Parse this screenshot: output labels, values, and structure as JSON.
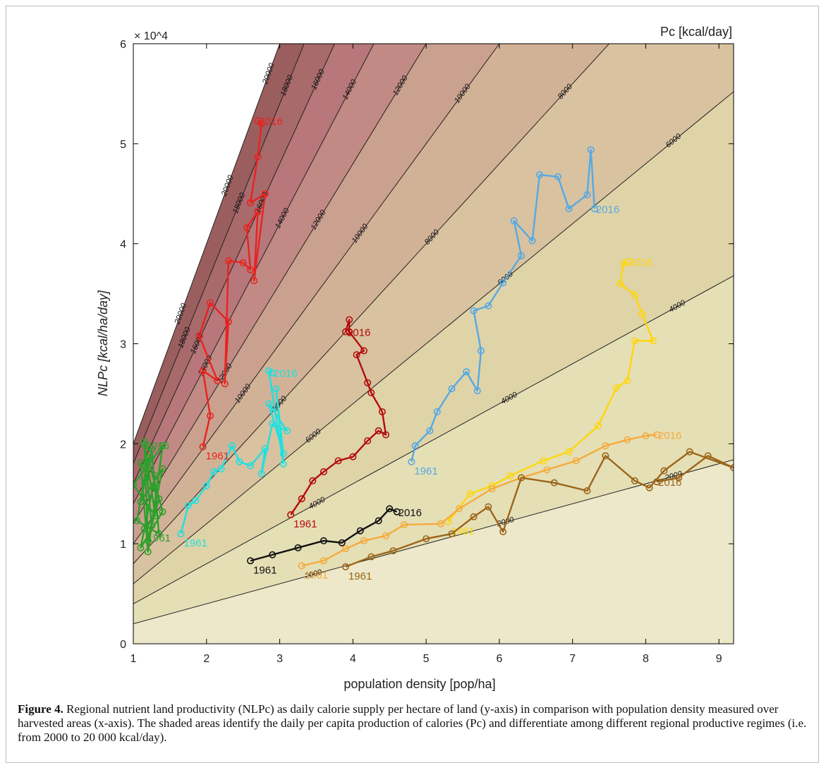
{
  "chart_data": {
    "type": "line",
    "title": "",
    "xlabel": "population density [pop/ha]",
    "ylabel": "NLPc [kcal/ha/day]",
    "y_exponent_label": "× 10^4",
    "colorbar_title": "Pc [kcal/day]",
    "xlim": [
      1,
      9.2
    ],
    "ylim": [
      0,
      60000
    ],
    "x_ticks": [
      1,
      2,
      3,
      4,
      5,
      6,
      7,
      8,
      9
    ],
    "y_ticks": [
      0,
      10000,
      20000,
      30000,
      40000,
      50000,
      60000
    ],
    "y_tick_labels": [
      "0",
      "1",
      "2",
      "3",
      "4",
      "5",
      "6"
    ],
    "grid": false,
    "shaded_regions_kcal_per_day": [
      0,
      2000,
      4000,
      6000,
      8000,
      10000,
      12000,
      14000,
      16000,
      18000,
      20000
    ],
    "contour_levels_kcal_per_day": [
      2000,
      4000,
      6000,
      8000,
      10000,
      12000,
      14000,
      16000,
      18000,
      20000
    ],
    "region_colors": [
      "#ece8c9",
      "#e5dfb6",
      "#dfd3a8",
      "#d8c2a0",
      "#d2b296",
      "#caa08f",
      "#c28a84",
      "#b8777a",
      "#a96a6c",
      "#9a5e5e",
      "#7f4d4d"
    ],
    "series": [
      {
        "color": "#2ca02c",
        "start_label": "1961",
        "end_label": "2016",
        "points": [
          [
            1.15,
            11500
          ],
          [
            1.3,
            16800
          ],
          [
            1.1,
            9600
          ],
          [
            1.4,
            13200
          ],
          [
            1.2,
            18600
          ],
          [
            1.05,
            12300
          ],
          [
            1.35,
            11000
          ],
          [
            1.25,
            19500
          ],
          [
            1.1,
            14200
          ],
          [
            1.4,
            17500
          ],
          [
            1.2,
            10300
          ],
          [
            1.15,
            20200
          ],
          [
            1.3,
            12800
          ],
          [
            1.0,
            15900
          ],
          [
            1.4,
            19800
          ],
          [
            1.2,
            9200
          ],
          [
            1.1,
            18100
          ],
          [
            1.35,
            14500
          ],
          [
            1.25,
            11800
          ],
          [
            1.15,
            19900
          ]
        ]
      },
      {
        "color": "#1fe0e0",
        "start_label": "1961",
        "end_label": "2016",
        "points": [
          [
            1.65,
            11000
          ],
          [
            1.75,
            13800
          ],
          [
            1.85,
            14300
          ],
          [
            2.0,
            15800
          ],
          [
            2.1,
            17200
          ],
          [
            2.2,
            17500
          ],
          [
            2.35,
            19800
          ],
          [
            2.45,
            18200
          ],
          [
            2.6,
            17800
          ],
          [
            2.8,
            19500
          ],
          [
            2.75,
            17000
          ],
          [
            2.9,
            22000
          ],
          [
            3.1,
            21300
          ],
          [
            2.85,
            24000
          ],
          [
            3.05,
            19000
          ],
          [
            2.95,
            25500
          ],
          [
            3.05,
            18000
          ],
          [
            2.85,
            27300
          ],
          [
            2.9,
            27100
          ]
        ]
      },
      {
        "color": "#e8231f",
        "start_label": "1961",
        "end_label": "2016",
        "points": [
          [
            1.95,
            19700
          ],
          [
            2.05,
            22800
          ],
          [
            1.95,
            27300
          ],
          [
            2.15,
            26300
          ],
          [
            1.9,
            30800
          ],
          [
            2.05,
            34100
          ],
          [
            2.3,
            32200
          ],
          [
            2.25,
            26000
          ],
          [
            2.3,
            38300
          ],
          [
            2.5,
            38100
          ],
          [
            2.6,
            37400
          ],
          [
            2.55,
            41600
          ],
          [
            2.7,
            43200
          ],
          [
            2.65,
            36300
          ],
          [
            2.8,
            45000
          ],
          [
            2.6,
            44100
          ],
          [
            2.7,
            48700
          ],
          [
            2.75,
            52000
          ],
          [
            2.7,
            52300
          ]
        ]
      },
      {
        "color": "#b30c0c",
        "start_label": "1961",
        "end_label": "2016",
        "points": [
          [
            3.15,
            12900
          ],
          [
            3.3,
            14500
          ],
          [
            3.45,
            16300
          ],
          [
            3.6,
            17200
          ],
          [
            3.8,
            18300
          ],
          [
            4.0,
            18700
          ],
          [
            4.2,
            20300
          ],
          [
            4.35,
            21300
          ],
          [
            4.45,
            20900
          ],
          [
            4.4,
            23200
          ],
          [
            4.25,
            25100
          ],
          [
            4.2,
            26100
          ],
          [
            4.05,
            28900
          ],
          [
            4.15,
            29300
          ],
          [
            3.95,
            31200
          ],
          [
            3.95,
            32400
          ],
          [
            3.9,
            31200
          ]
        ]
      },
      {
        "color": "#56a9e3",
        "start_label": "1961",
        "end_label": "2016",
        "points": [
          [
            4.8,
            18200
          ],
          [
            4.85,
            19800
          ],
          [
            5.05,
            21300
          ],
          [
            5.15,
            23200
          ],
          [
            5.35,
            25500
          ],
          [
            5.55,
            27200
          ],
          [
            5.7,
            25300
          ],
          [
            5.75,
            29300
          ],
          [
            5.65,
            33300
          ],
          [
            5.85,
            33800
          ],
          [
            6.05,
            36100
          ],
          [
            6.3,
            38800
          ],
          [
            6.2,
            42300
          ],
          [
            6.45,
            40300
          ],
          [
            6.55,
            46900
          ],
          [
            6.8,
            46700
          ],
          [
            6.95,
            43500
          ],
          [
            7.2,
            44900
          ],
          [
            7.25,
            49400
          ],
          [
            7.3,
            43500
          ]
        ]
      },
      {
        "color": "#ffd60a",
        "start_label": "1961",
        "end_label": "2016",
        "points": [
          [
            5.3,
            12200
          ],
          [
            5.6,
            15000
          ],
          [
            5.9,
            15800
          ],
          [
            6.15,
            16800
          ],
          [
            6.6,
            18300
          ],
          [
            6.95,
            19200
          ],
          [
            7.35,
            21800
          ],
          [
            7.6,
            25600
          ],
          [
            7.75,
            26300
          ],
          [
            7.85,
            30300
          ],
          [
            8.1,
            30300
          ],
          [
            7.95,
            33000
          ],
          [
            7.85,
            34900
          ],
          [
            7.65,
            36000
          ],
          [
            7.7,
            38000
          ],
          [
            7.75,
            38200
          ]
        ]
      },
      {
        "color": "#f4ab3c",
        "start_label": "1961",
        "end_label": "2016",
        "points": [
          [
            3.3,
            7800
          ],
          [
            3.6,
            8300
          ],
          [
            3.9,
            9500
          ],
          [
            4.15,
            10300
          ],
          [
            4.45,
            10800
          ],
          [
            4.7,
            11900
          ],
          [
            5.2,
            12000
          ],
          [
            5.45,
            13500
          ],
          [
            5.9,
            15500
          ],
          [
            6.3,
            16600
          ],
          [
            6.65,
            17400
          ],
          [
            7.05,
            18300
          ],
          [
            7.45,
            19800
          ],
          [
            7.75,
            20400
          ],
          [
            8.0,
            20800
          ],
          [
            8.15,
            20900
          ]
        ]
      },
      {
        "color": "#9b6519",
        "start_label": "1961",
        "end_label": "2016",
        "points": [
          [
            3.9,
            7700
          ],
          [
            4.25,
            8700
          ],
          [
            4.55,
            9300
          ],
          [
            5.0,
            10500
          ],
          [
            5.35,
            11000
          ],
          [
            5.65,
            12700
          ],
          [
            5.85,
            13700
          ],
          [
            6.05,
            11200
          ],
          [
            6.3,
            16600
          ],
          [
            6.75,
            16100
          ],
          [
            7.2,
            15300
          ],
          [
            7.45,
            18800
          ],
          [
            7.85,
            16300
          ],
          [
            8.05,
            15600
          ],
          [
            8.25,
            17300
          ],
          [
            8.6,
            19200
          ],
          [
            9.2,
            17600
          ],
          [
            8.85,
            18800
          ],
          [
            8.45,
            16600
          ],
          [
            8.15,
            16200
          ]
        ]
      },
      {
        "color": "#111111",
        "start_label": "1961",
        "end_label": "2016",
        "points": [
          [
            2.6,
            8300
          ],
          [
            2.9,
            8900
          ],
          [
            3.25,
            9600
          ],
          [
            3.6,
            10300
          ],
          [
            3.85,
            10100
          ],
          [
            4.1,
            11300
          ],
          [
            4.35,
            12300
          ],
          [
            4.5,
            13500
          ],
          [
            4.6,
            13200
          ]
        ]
      }
    ]
  },
  "caption": {
    "label": "Figure 4.",
    "text": "Regional nutrient land productivity (NLPc) as daily calorie supply per hectare of land (y-axis) in comparison with population density measured over harvested areas (x-axis). The shaded areas identify the daily per capita production of calories (Pc) and differentiate among different regional productive regimes (i.e. from 2000 to 20 000 kcal/day)."
  }
}
